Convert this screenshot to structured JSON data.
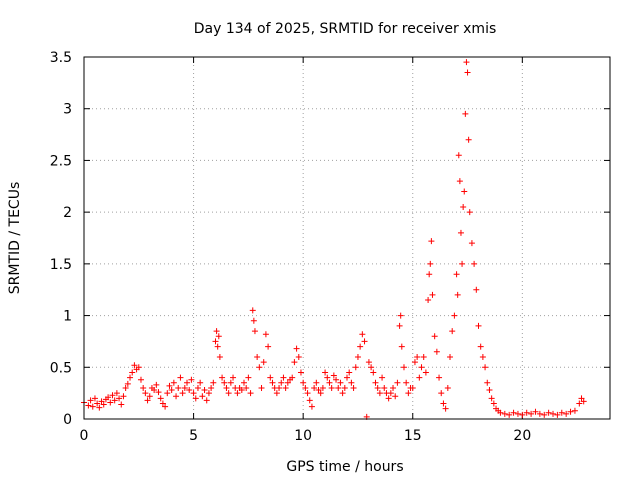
{
  "chart_data": {
    "type": "scatter",
    "title": "Day 134 of 2025, SRMTID for receiver xmis",
    "xlabel": "GPS time / hours",
    "ylabel": "SRMTID / TECUs",
    "xlim": [
      0,
      24
    ],
    "ylim": [
      0,
      3.5
    ],
    "x_ticks": [
      0,
      5,
      10,
      15,
      20
    ],
    "y_ticks": [
      0,
      0.5,
      1,
      1.5,
      2,
      2.5,
      3,
      3.5
    ],
    "y_tick_labels": [
      "0",
      "0.5",
      "1",
      "1.5",
      "2",
      "2.5",
      "3",
      "3.5"
    ],
    "grid": true,
    "marker": "+",
    "color": "#ff0000",
    "series": [
      {
        "name": "SRMTID",
        "points": [
          [
            0.0,
            0.16
          ],
          [
            0.2,
            0.13
          ],
          [
            0.3,
            0.18
          ],
          [
            0.4,
            0.12
          ],
          [
            0.5,
            0.2
          ],
          [
            0.6,
            0.15
          ],
          [
            0.7,
            0.11
          ],
          [
            0.8,
            0.17
          ],
          [
            0.9,
            0.14
          ],
          [
            1.0,
            0.19
          ],
          [
            1.1,
            0.21
          ],
          [
            1.2,
            0.16
          ],
          [
            1.3,
            0.23
          ],
          [
            1.4,
            0.18
          ],
          [
            1.5,
            0.25
          ],
          [
            1.6,
            0.2
          ],
          [
            1.7,
            0.14
          ],
          [
            1.8,
            0.22
          ],
          [
            1.9,
            0.3
          ],
          [
            2.0,
            0.34
          ],
          [
            2.1,
            0.4
          ],
          [
            2.2,
            0.45
          ],
          [
            2.3,
            0.52
          ],
          [
            2.4,
            0.48
          ],
          [
            2.5,
            0.5
          ],
          [
            2.6,
            0.38
          ],
          [
            2.7,
            0.3
          ],
          [
            2.8,
            0.25
          ],
          [
            2.9,
            0.18
          ],
          [
            3.0,
            0.22
          ],
          [
            3.1,
            0.3
          ],
          [
            3.2,
            0.28
          ],
          [
            3.3,
            0.33
          ],
          [
            3.4,
            0.26
          ],
          [
            3.5,
            0.2
          ],
          [
            3.6,
            0.15
          ],
          [
            3.7,
            0.12
          ],
          [
            3.8,
            0.25
          ],
          [
            3.9,
            0.32
          ],
          [
            4.0,
            0.28
          ],
          [
            4.1,
            0.35
          ],
          [
            4.2,
            0.22
          ],
          [
            4.3,
            0.3
          ],
          [
            4.4,
            0.4
          ],
          [
            4.5,
            0.25
          ],
          [
            4.6,
            0.3
          ],
          [
            4.7,
            0.35
          ],
          [
            4.8,
            0.28
          ],
          [
            4.9,
            0.38
          ],
          [
            5.0,
            0.25
          ],
          [
            5.1,
            0.2
          ],
          [
            5.2,
            0.3
          ],
          [
            5.3,
            0.35
          ],
          [
            5.4,
            0.22
          ],
          [
            5.5,
            0.28
          ],
          [
            5.6,
            0.18
          ],
          [
            5.7,
            0.25
          ],
          [
            5.8,
            0.3
          ],
          [
            5.9,
            0.35
          ],
          [
            6.0,
            0.75
          ],
          [
            6.05,
            0.85
          ],
          [
            6.1,
            0.7
          ],
          [
            6.15,
            0.8
          ],
          [
            6.2,
            0.6
          ],
          [
            6.3,
            0.4
          ],
          [
            6.4,
            0.35
          ],
          [
            6.5,
            0.3
          ],
          [
            6.6,
            0.25
          ],
          [
            6.7,
            0.35
          ],
          [
            6.8,
            0.4
          ],
          [
            6.9,
            0.3
          ],
          [
            7.0,
            0.25
          ],
          [
            7.1,
            0.3
          ],
          [
            7.2,
            0.28
          ],
          [
            7.3,
            0.35
          ],
          [
            7.4,
            0.3
          ],
          [
            7.5,
            0.4
          ],
          [
            7.6,
            0.25
          ],
          [
            7.7,
            1.05
          ],
          [
            7.75,
            0.95
          ],
          [
            7.8,
            0.85
          ],
          [
            7.9,
            0.6
          ],
          [
            8.0,
            0.5
          ],
          [
            8.1,
            0.3
          ],
          [
            8.2,
            0.55
          ],
          [
            8.3,
            0.82
          ],
          [
            8.4,
            0.7
          ],
          [
            8.5,
            0.4
          ],
          [
            8.6,
            0.35
          ],
          [
            8.7,
            0.3
          ],
          [
            8.8,
            0.25
          ],
          [
            8.9,
            0.3
          ],
          [
            9.0,
            0.35
          ],
          [
            9.1,
            0.4
          ],
          [
            9.2,
            0.3
          ],
          [
            9.3,
            0.35
          ],
          [
            9.4,
            0.38
          ],
          [
            9.5,
            0.4
          ],
          [
            9.6,
            0.55
          ],
          [
            9.7,
            0.68
          ],
          [
            9.8,
            0.6
          ],
          [
            9.9,
            0.45
          ],
          [
            10.0,
            0.35
          ],
          [
            10.1,
            0.3
          ],
          [
            10.2,
            0.25
          ],
          [
            10.3,
            0.18
          ],
          [
            10.4,
            0.12
          ],
          [
            10.5,
            0.3
          ],
          [
            10.6,
            0.35
          ],
          [
            10.7,
            0.28
          ],
          [
            10.8,
            0.25
          ],
          [
            10.9,
            0.3
          ],
          [
            11.0,
            0.45
          ],
          [
            11.1,
            0.4
          ],
          [
            11.2,
            0.35
          ],
          [
            11.3,
            0.3
          ],
          [
            11.4,
            0.42
          ],
          [
            11.5,
            0.38
          ],
          [
            11.6,
            0.3
          ],
          [
            11.7,
            0.35
          ],
          [
            11.8,
            0.25
          ],
          [
            11.9,
            0.3
          ],
          [
            12.0,
            0.4
          ],
          [
            12.1,
            0.45
          ],
          [
            12.2,
            0.35
          ],
          [
            12.3,
            0.3
          ],
          [
            12.4,
            0.5
          ],
          [
            12.5,
            0.6
          ],
          [
            12.6,
            0.7
          ],
          [
            12.7,
            0.82
          ],
          [
            12.8,
            0.75
          ],
          [
            12.9,
            0.02
          ],
          [
            13.0,
            0.55
          ],
          [
            13.1,
            0.5
          ],
          [
            13.2,
            0.45
          ],
          [
            13.3,
            0.35
          ],
          [
            13.4,
            0.3
          ],
          [
            13.5,
            0.25
          ],
          [
            13.6,
            0.4
          ],
          [
            13.7,
            0.3
          ],
          [
            13.8,
            0.25
          ],
          [
            13.9,
            0.2
          ],
          [
            14.0,
            0.25
          ],
          [
            14.1,
            0.3
          ],
          [
            14.2,
            0.22
          ],
          [
            14.3,
            0.35
          ],
          [
            14.4,
            0.9
          ],
          [
            14.45,
            1.0
          ],
          [
            14.5,
            0.7
          ],
          [
            14.6,
            0.5
          ],
          [
            14.7,
            0.35
          ],
          [
            14.8,
            0.25
          ],
          [
            14.9,
            0.3
          ],
          [
            15.0,
            0.3
          ],
          [
            15.1,
            0.55
          ],
          [
            15.2,
            0.6
          ],
          [
            15.3,
            0.4
          ],
          [
            15.4,
            0.5
          ],
          [
            15.5,
            0.6
          ],
          [
            15.6,
            0.45
          ],
          [
            15.7,
            1.15
          ],
          [
            15.75,
            1.4
          ],
          [
            15.8,
            1.5
          ],
          [
            15.85,
            1.72
          ],
          [
            15.9,
            1.2
          ],
          [
            16.0,
            0.8
          ],
          [
            16.1,
            0.65
          ],
          [
            16.2,
            0.4
          ],
          [
            16.3,
            0.25
          ],
          [
            16.4,
            0.15
          ],
          [
            16.5,
            0.1
          ],
          [
            16.6,
            0.3
          ],
          [
            16.7,
            0.6
          ],
          [
            16.8,
            0.85
          ],
          [
            16.9,
            1.0
          ],
          [
            17.0,
            1.4
          ],
          [
            17.05,
            1.2
          ],
          [
            17.1,
            2.55
          ],
          [
            17.15,
            2.3
          ],
          [
            17.2,
            1.8
          ],
          [
            17.25,
            1.5
          ],
          [
            17.3,
            2.05
          ],
          [
            17.35,
            2.2
          ],
          [
            17.4,
            2.95
          ],
          [
            17.45,
            3.45
          ],
          [
            17.5,
            3.35
          ],
          [
            17.55,
            2.7
          ],
          [
            17.6,
            2.0
          ],
          [
            17.7,
            1.7
          ],
          [
            17.8,
            1.5
          ],
          [
            17.9,
            1.25
          ],
          [
            18.0,
            0.9
          ],
          [
            18.1,
            0.7
          ],
          [
            18.2,
            0.6
          ],
          [
            18.3,
            0.5
          ],
          [
            18.4,
            0.35
          ],
          [
            18.5,
            0.28
          ],
          [
            18.6,
            0.2
          ],
          [
            18.7,
            0.15
          ],
          [
            18.8,
            0.1
          ],
          [
            18.9,
            0.08
          ],
          [
            19.0,
            0.06
          ],
          [
            19.2,
            0.05
          ],
          [
            19.4,
            0.04
          ],
          [
            19.6,
            0.06
          ],
          [
            19.8,
            0.05
          ],
          [
            20.0,
            0.04
          ],
          [
            20.2,
            0.06
          ],
          [
            20.4,
            0.05
          ],
          [
            20.6,
            0.07
          ],
          [
            20.8,
            0.05
          ],
          [
            21.0,
            0.04
          ],
          [
            21.2,
            0.06
          ],
          [
            21.4,
            0.05
          ],
          [
            21.6,
            0.04
          ],
          [
            21.8,
            0.06
          ],
          [
            22.0,
            0.05
          ],
          [
            22.2,
            0.07
          ],
          [
            22.4,
            0.08
          ],
          [
            22.6,
            0.15
          ],
          [
            22.7,
            0.2
          ],
          [
            22.8,
            0.17
          ]
        ]
      }
    ]
  }
}
